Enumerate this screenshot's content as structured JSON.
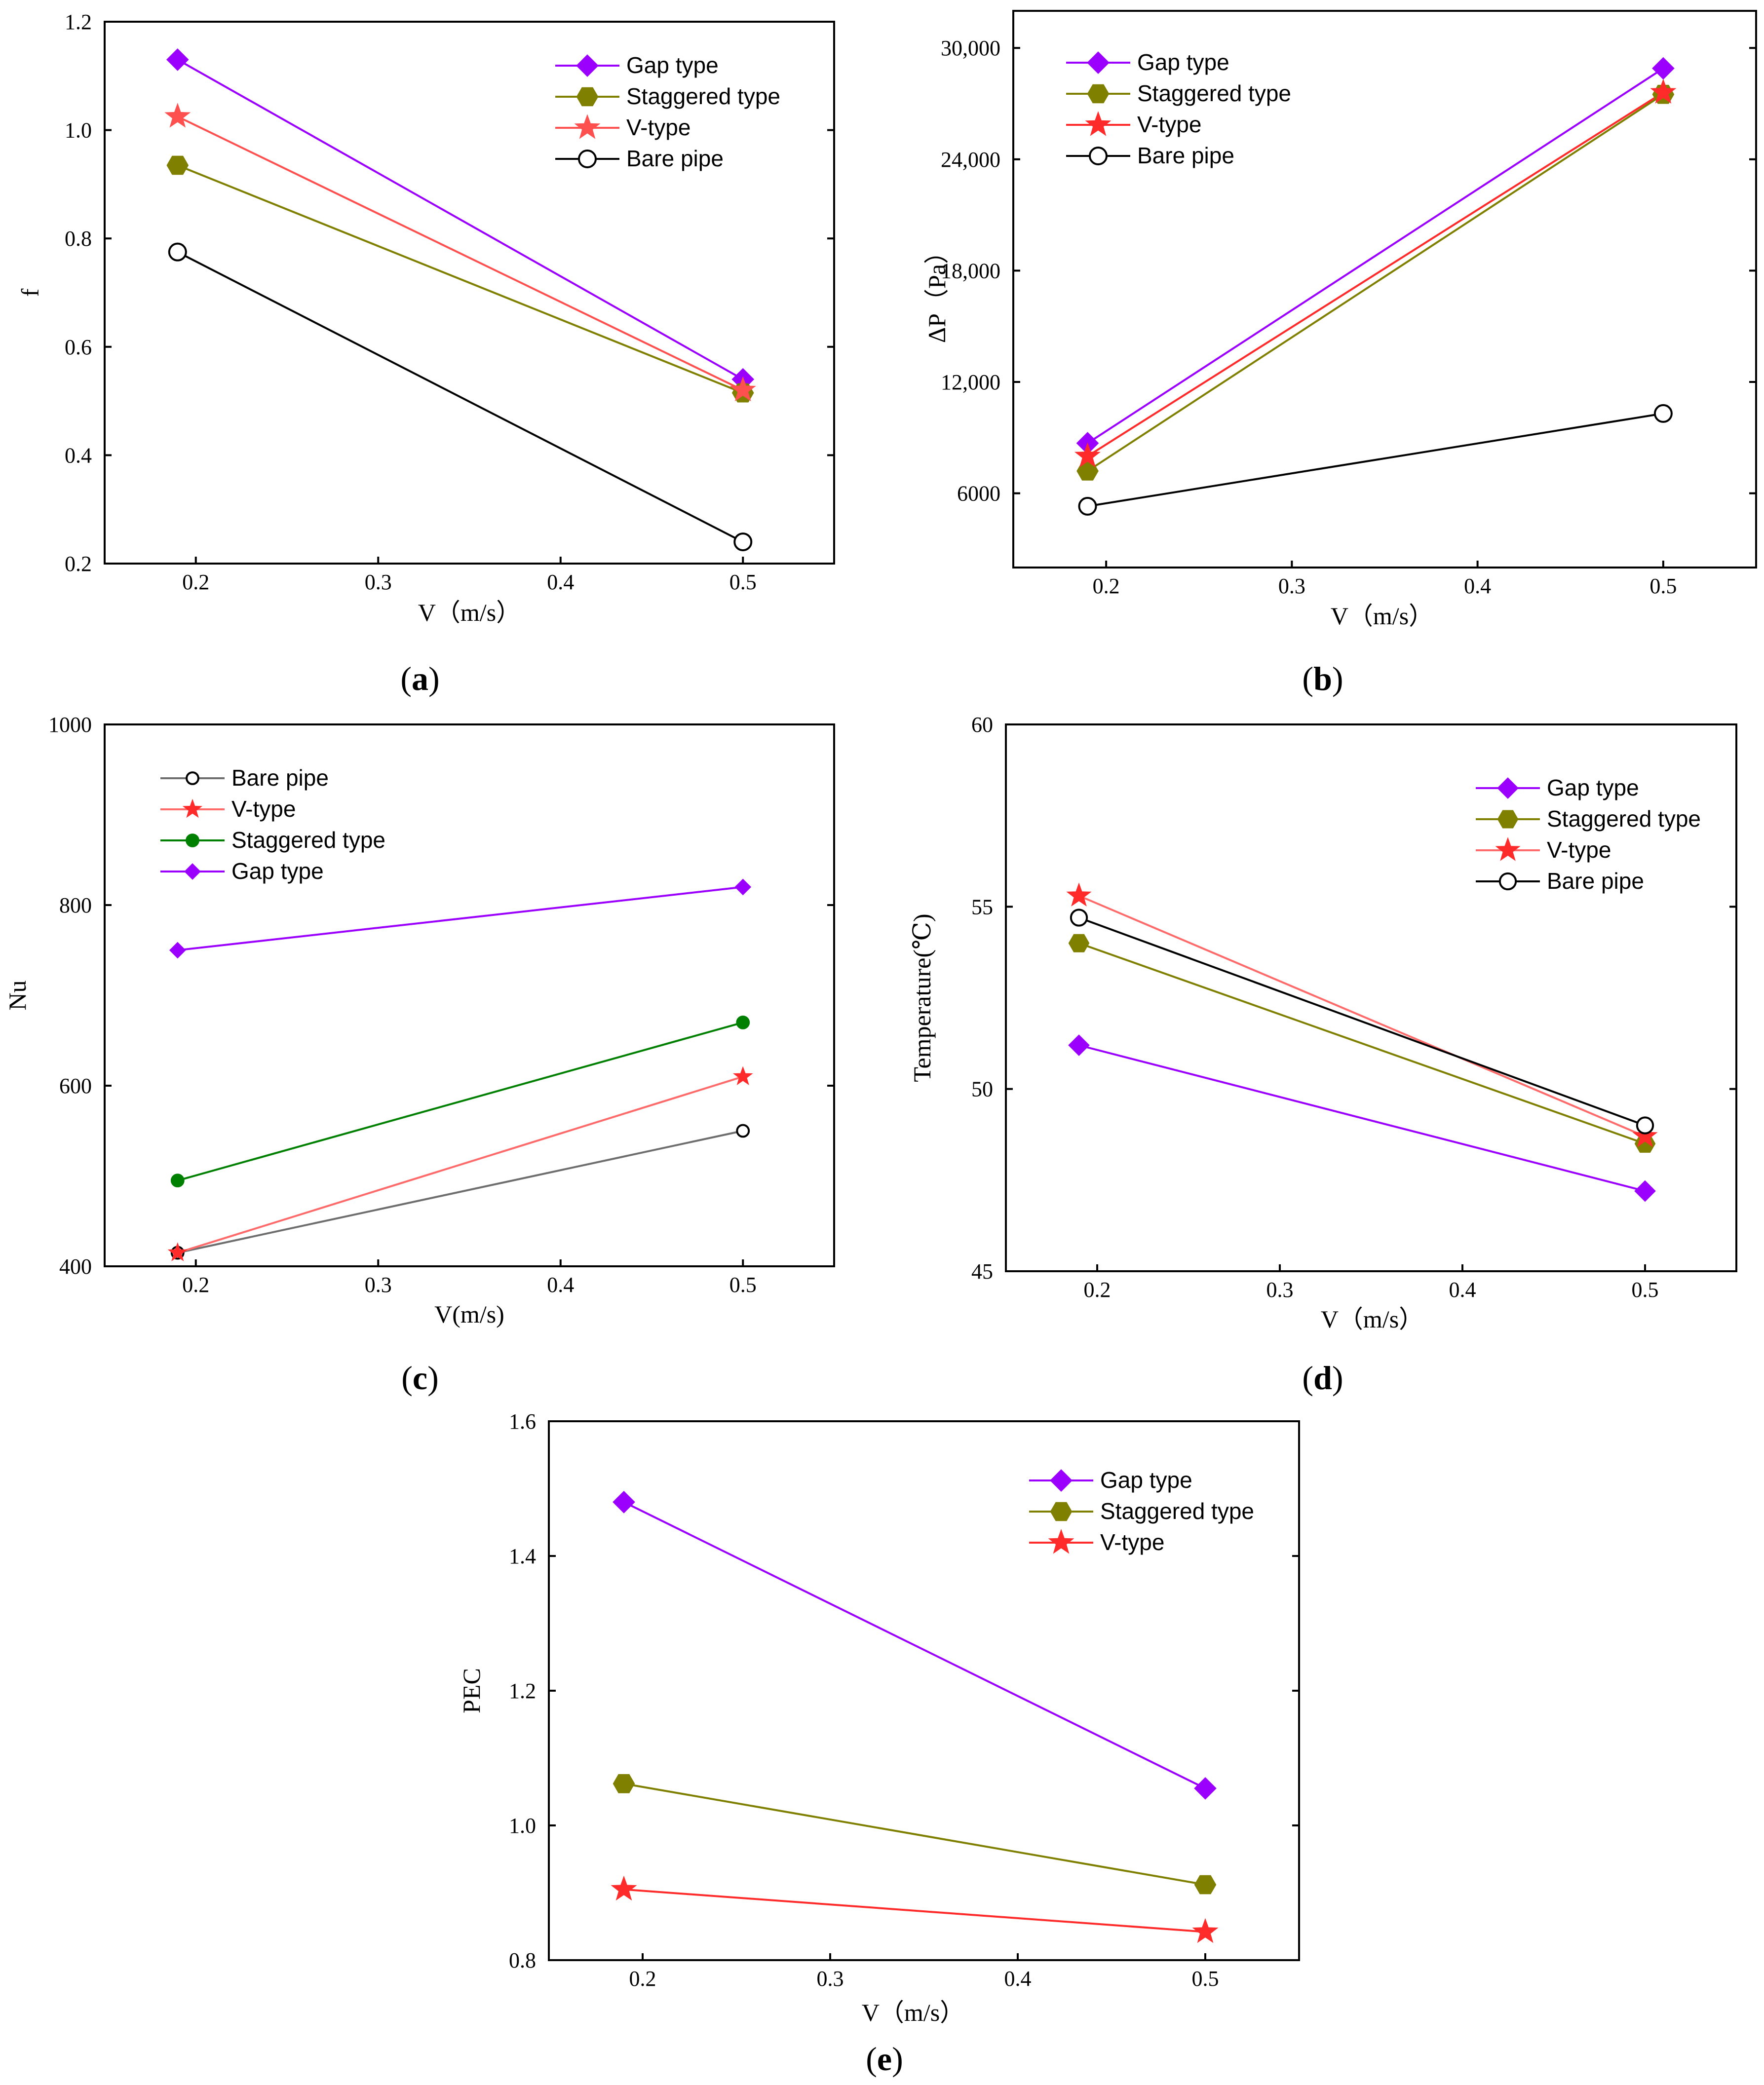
{
  "colors": {
    "gap": "#9b00ff",
    "staggered": "#7f7f00",
    "vtype": "#ff2a2a",
    "bare": "#000000",
    "bare_gray": "#6e6e6e",
    "staggered_green": "#008000"
  },
  "chart_data": [
    {
      "id": "a",
      "type": "line",
      "panel_label": "a",
      "xlabel": "V（m/s）",
      "ylabel": "f",
      "xlim": [
        0.15,
        0.55
      ],
      "ylim": [
        0.2,
        1.2
      ],
      "xticks": [
        0.2,
        0.3,
        0.4,
        0.5
      ],
      "xtick_labels": [
        "0.2",
        "0.3",
        "0.4",
        "0.5"
      ],
      "yticks": [
        0.2,
        0.4,
        0.6,
        0.8,
        1.0,
        1.2
      ],
      "ytick_labels": [
        "0.2",
        "0.4",
        "0.6",
        "0.8",
        "1.0",
        "1.2"
      ],
      "legend_position": "top-right",
      "x": [
        0.19,
        0.5
      ],
      "series": [
        {
          "name": "Gap type",
          "values": [
            1.13,
            0.54
          ],
          "color": "#9b00ff",
          "line_color": "#9b00ff",
          "marker": "diamond",
          "fill": "#9b00ff",
          "stroke": "#9b00ff"
        },
        {
          "name": "Staggered type",
          "values": [
            0.935,
            0.515
          ],
          "color": "#7f7f00",
          "line_color": "#7f7f00",
          "marker": "hexagon",
          "fill": "#7f7f00",
          "stroke": "#7f7f00"
        },
        {
          "name": "V-type",
          "values": [
            1.025,
            0.52
          ],
          "color": "#ff2a2a",
          "line_color": "#ff5050",
          "marker": "star",
          "fill": "#ff5050",
          "stroke": "#ff5050"
        },
        {
          "name": "Bare pipe",
          "values": [
            0.775,
            0.24
          ],
          "color": "#000000",
          "line_color": "#000000",
          "marker": "circle",
          "fill": "#ffffff",
          "stroke": "#000000"
        }
      ]
    },
    {
      "id": "b",
      "type": "line",
      "panel_label": "b",
      "xlabel": "V（m/s）",
      "ylabel": "ΔP（Pa）",
      "xlim": [
        0.15,
        0.55
      ],
      "ylim": [
        2000,
        32000
      ],
      "xticks": [
        0.2,
        0.3,
        0.4,
        0.5
      ],
      "xtick_labels": [
        "0.2",
        "0.3",
        "0.4",
        "0.5"
      ],
      "yticks": [
        6000,
        12000,
        18000,
        24000,
        30000
      ],
      "ytick_labels": [
        "6000",
        "12,000",
        "18,000",
        "24,000",
        "30,000"
      ],
      "legend_position": "top-left",
      "x": [
        0.19,
        0.5
      ],
      "series": [
        {
          "name": "Gap type",
          "values": [
            8700,
            28900
          ],
          "color": "#9b00ff",
          "line_color": "#9b00ff",
          "marker": "diamond",
          "fill": "#9b00ff",
          "stroke": "#9b00ff"
        },
        {
          "name": "Staggered type",
          "values": [
            7200,
            27500
          ],
          "color": "#7f7f00",
          "line_color": "#7f7f00",
          "marker": "hexagon",
          "fill": "#7f7f00",
          "stroke": "#7f7f00"
        },
        {
          "name": "V-type",
          "values": [
            8000,
            27600
          ],
          "color": "#ff2a2a",
          "line_color": "#ff2a2a",
          "marker": "star",
          "fill": "#ff2a2a",
          "stroke": "#ff2a2a"
        },
        {
          "name": "Bare pipe",
          "values": [
            5300,
            10300
          ],
          "color": "#000000",
          "line_color": "#000000",
          "marker": "circle",
          "fill": "#ffffff",
          "stroke": "#000000"
        }
      ]
    },
    {
      "id": "c",
      "type": "line",
      "panel_label": "c",
      "xlabel": "V(m/s)",
      "ylabel": "Nu",
      "xlim": [
        0.15,
        0.55
      ],
      "ylim": [
        400,
        1000
      ],
      "xticks": [
        0.2,
        0.3,
        0.4,
        0.5
      ],
      "xtick_labels": [
        "0.2",
        "0.3",
        "0.4",
        "0.5"
      ],
      "yticks": [
        400,
        600,
        800,
        1000
      ],
      "ytick_labels": [
        "400",
        "600",
        "800",
        "1000"
      ],
      "legend_position": "top-left",
      "x": [
        0.19,
        0.5
      ],
      "series": [
        {
          "name": "Bare pipe",
          "values": [
            415,
            550
          ],
          "color": "#6e6e6e",
          "line_color": "#6e6e6e",
          "marker": "circle",
          "fill": "#ffffff",
          "stroke": "#000000"
        },
        {
          "name": "V-type",
          "values": [
            415,
            610
          ],
          "color": "#ff2a2a",
          "line_color": "#ff6a6a",
          "marker": "star",
          "fill": "#ff2a2a",
          "stroke": "#ff2a2a"
        },
        {
          "name": "Staggered type",
          "values": [
            495,
            670
          ],
          "color": "#008000",
          "line_color": "#008000",
          "marker": "circle",
          "fill": "#008000",
          "stroke": "#008000"
        },
        {
          "name": "Gap type",
          "values": [
            750,
            820
          ],
          "color": "#9b00ff",
          "line_color": "#9b00ff",
          "marker": "diamond",
          "fill": "#9b00ff",
          "stroke": "#9b00ff"
        }
      ]
    },
    {
      "id": "d",
      "type": "line",
      "panel_label": "d",
      "xlabel": "V（m/s）",
      "ylabel": "Temperature(℃)",
      "xlim": [
        0.15,
        0.55
      ],
      "ylim": [
        45,
        60
      ],
      "xticks": [
        0.2,
        0.3,
        0.4,
        0.5
      ],
      "xtick_labels": [
        "0.2",
        "0.3",
        "0.4",
        "0.5"
      ],
      "yticks": [
        45,
        50,
        55,
        60
      ],
      "ytick_labels": [
        "45",
        "50",
        "55",
        "60"
      ],
      "legend_position": "top-right",
      "x": [
        0.19,
        0.5
      ],
      "series": [
        {
          "name": "Gap type",
          "values": [
            51.2,
            47.2
          ],
          "color": "#9b00ff",
          "line_color": "#9b00ff",
          "marker": "diamond",
          "fill": "#9b00ff",
          "stroke": "#9b00ff"
        },
        {
          "name": "Staggered type",
          "values": [
            54.0,
            48.5
          ],
          "color": "#7f7f00",
          "line_color": "#7f7f00",
          "marker": "hexagon",
          "fill": "#7f7f00",
          "stroke": "#7f7f00"
        },
        {
          "name": "V-type",
          "values": [
            55.3,
            48.7
          ],
          "color": "#ff2a2a",
          "line_color": "#ff6a6a",
          "marker": "star",
          "fill": "#ff2a2a",
          "stroke": "#ff2a2a"
        },
        {
          "name": "Bare pipe",
          "values": [
            54.7,
            49.0
          ],
          "color": "#000000",
          "line_color": "#000000",
          "marker": "circle",
          "fill": "#ffffff",
          "stroke": "#000000"
        }
      ]
    },
    {
      "id": "e",
      "type": "line",
      "panel_label": "e",
      "xlabel": "V（m/s）",
      "ylabel": "PEC",
      "xlim": [
        0.15,
        0.55
      ],
      "ylim": [
        0.8,
        1.6
      ],
      "xticks": [
        0.2,
        0.3,
        0.4,
        0.5
      ],
      "xtick_labels": [
        "0.2",
        "0.3",
        "0.4",
        "0.5"
      ],
      "yticks": [
        0.8,
        1.0,
        1.2,
        1.4,
        1.6
      ],
      "ytick_labels": [
        "0.8",
        "1.0",
        "1.2",
        "1.4",
        "1.6"
      ],
      "legend_position": "top-right",
      "x": [
        0.19,
        0.5
      ],
      "series": [
        {
          "name": "Gap type",
          "values": [
            1.48,
            1.055
          ],
          "color": "#9b00ff",
          "line_color": "#9b00ff",
          "marker": "diamond",
          "fill": "#9b00ff",
          "stroke": "#9b00ff"
        },
        {
          "name": "Staggered type",
          "values": [
            1.062,
            0.912
          ],
          "color": "#7f7f00",
          "line_color": "#7f7f00",
          "marker": "hexagon",
          "fill": "#7f7f00",
          "stroke": "#7f7f00"
        },
        {
          "name": "V-type",
          "values": [
            0.905,
            0.842
          ],
          "color": "#ff2a2a",
          "line_color": "#ff2a2a",
          "marker": "star",
          "fill": "#ff2a2a",
          "stroke": "#ff2a2a"
        }
      ]
    }
  ]
}
